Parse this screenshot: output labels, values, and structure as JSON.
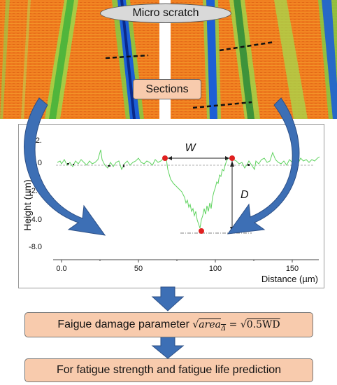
{
  "top": {
    "scratch_label": "Micro scratch",
    "sections_label": "Sections"
  },
  "profile": {
    "y_ticks": [
      "+2.",
      "+0.0",
      "-2.0",
      "-4.0",
      "-8.0"
    ],
    "x_ticks": [
      "0.0",
      "50",
      "100",
      "150"
    ],
    "ylabel": "Height (µm)",
    "xlabel": "Distance (µm)",
    "width_label": "W",
    "depth_label": "D"
  },
  "formula": {
    "text": "Faigue damage parameter",
    "lhs": "area",
    "lhs_sub": "Δ",
    "equals": "=",
    "rhs": "0.5WD"
  },
  "prediction": {
    "text": "For fatigue strength and fatigue life prediction"
  },
  "colors": {
    "surface": "#f07c1c",
    "scratch": "#1f5bd0",
    "arrow": "#3d6fb5",
    "box_fill": "#f8cbad",
    "profile_line": "#5fd35f",
    "marker": "#e02020"
  }
}
